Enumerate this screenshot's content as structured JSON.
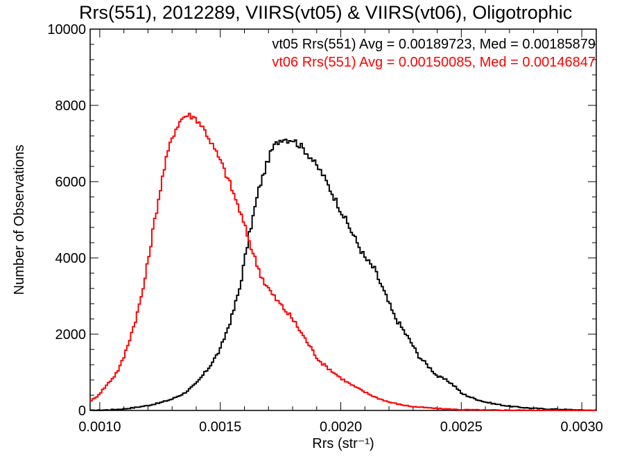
{
  "chart_data": {
    "type": "line",
    "step": true,
    "title": "Rrs(551), 2012289, VIIRS(vt05) & VIIRS(vt06), Oligotrophic",
    "xlabel": "Rrs (str⁻¹)",
    "ylabel": "Number of Observations",
    "xlim": [
      0.00096,
      0.00306
    ],
    "ylim": [
      0,
      10000
    ],
    "x_ticks": [
      0.001,
      0.0015,
      0.002,
      0.0025,
      0.003
    ],
    "x_tick_labels": [
      "0.0010",
      "0.0015",
      "0.0020",
      "0.0025",
      "0.0030"
    ],
    "y_ticks": [
      0,
      2000,
      4000,
      6000,
      8000,
      10000
    ],
    "y_tick_labels": [
      "0",
      "2000",
      "4000",
      "6000",
      "8000",
      "10000"
    ],
    "grid": false,
    "annotations": [
      {
        "text": "vt05 Rrs(551) Avg = 0.00189723, Med = 0.00185879",
        "color": "#000000"
      },
      {
        "text": "vt06 Rrs(551) Avg = 0.00150085, Med = 0.00146847",
        "color": "#ff0000"
      }
    ],
    "series": [
      {
        "color": "#000000",
        "x": [
          0.00096,
          0.001,
          0.00105,
          0.0011,
          0.00115,
          0.0012,
          0.00125,
          0.0013,
          0.00135,
          0.0014,
          0.00145,
          0.0015,
          0.00155,
          0.00158,
          0.0016,
          0.00162,
          0.00164,
          0.00166,
          0.00168,
          0.0017,
          0.00172,
          0.00174,
          0.00176,
          0.00178,
          0.0018,
          0.00182,
          0.00184,
          0.00186,
          0.00188,
          0.0019,
          0.00192,
          0.00194,
          0.00196,
          0.00198,
          0.002,
          0.00202,
          0.00204,
          0.00206,
          0.00208,
          0.0021,
          0.00212,
          0.00214,
          0.00216,
          0.00218,
          0.0022,
          0.00222,
          0.00224,
          0.00226,
          0.00228,
          0.0023,
          0.00232,
          0.00235,
          0.00238,
          0.0024,
          0.00243,
          0.00245,
          0.00248,
          0.0025,
          0.00255,
          0.0026,
          0.00265,
          0.0027,
          0.00275,
          0.0028,
          0.00285,
          0.0029,
          0.00295,
          0.003,
          0.00306
        ],
        "values": [
          0,
          5,
          20,
          40,
          80,
          130,
          200,
          300,
          450,
          700,
          1100,
          1600,
          2500,
          3200,
          3900,
          4600,
          5200,
          5800,
          6200,
          6600,
          6900,
          7050,
          7150,
          7100,
          7120,
          7000,
          6900,
          6750,
          6600,
          6400,
          6250,
          6000,
          5750,
          5500,
          5250,
          5000,
          4750,
          4500,
          4250,
          4000,
          3850,
          3700,
          3400,
          3100,
          2800,
          2500,
          2300,
          2100,
          1900,
          1700,
          1450,
          1250,
          1050,
          900,
          820,
          750,
          600,
          450,
          320,
          220,
          160,
          110,
          80,
          55,
          40,
          30,
          20,
          10,
          5
        ]
      },
      {
        "color": "#ff0000",
        "x": [
          0.00096,
          0.00098,
          0.001,
          0.00102,
          0.00104,
          0.00106,
          0.00108,
          0.0011,
          0.00112,
          0.00114,
          0.00116,
          0.00118,
          0.0012,
          0.00122,
          0.00124,
          0.00126,
          0.00128,
          0.0013,
          0.00132,
          0.00134,
          0.00136,
          0.00138,
          0.0014,
          0.00142,
          0.00144,
          0.00146,
          0.00148,
          0.0015,
          0.00152,
          0.00154,
          0.00156,
          0.00158,
          0.0016,
          0.00162,
          0.00164,
          0.00166,
          0.00168,
          0.0017,
          0.00172,
          0.00174,
          0.00176,
          0.00178,
          0.0018,
          0.00182,
          0.00184,
          0.00186,
          0.00188,
          0.0019,
          0.00192,
          0.00194,
          0.00196,
          0.00198,
          0.002,
          0.00205,
          0.0021,
          0.00215,
          0.0022,
          0.00225,
          0.0023,
          0.0024,
          0.0025,
          0.0026,
          0.0028,
          0.00306
        ],
        "values": [
          250,
          320,
          450,
          600,
          750,
          900,
          1100,
          1400,
          1800,
          2200,
          2650,
          3200,
          3900,
          4700,
          5400,
          6100,
          6700,
          7150,
          7450,
          7650,
          7750,
          7720,
          7650,
          7500,
          7300,
          7050,
          6800,
          6550,
          6250,
          5950,
          5600,
          5250,
          4850,
          4450,
          4050,
          3700,
          3400,
          3200,
          3000,
          2850,
          2700,
          2550,
          2400,
          2200,
          2000,
          1800,
          1600,
          1400,
          1250,
          1150,
          1050,
          950,
          850,
          650,
          480,
          330,
          220,
          150,
          100,
          50,
          20,
          10,
          5,
          0
        ]
      }
    ]
  }
}
